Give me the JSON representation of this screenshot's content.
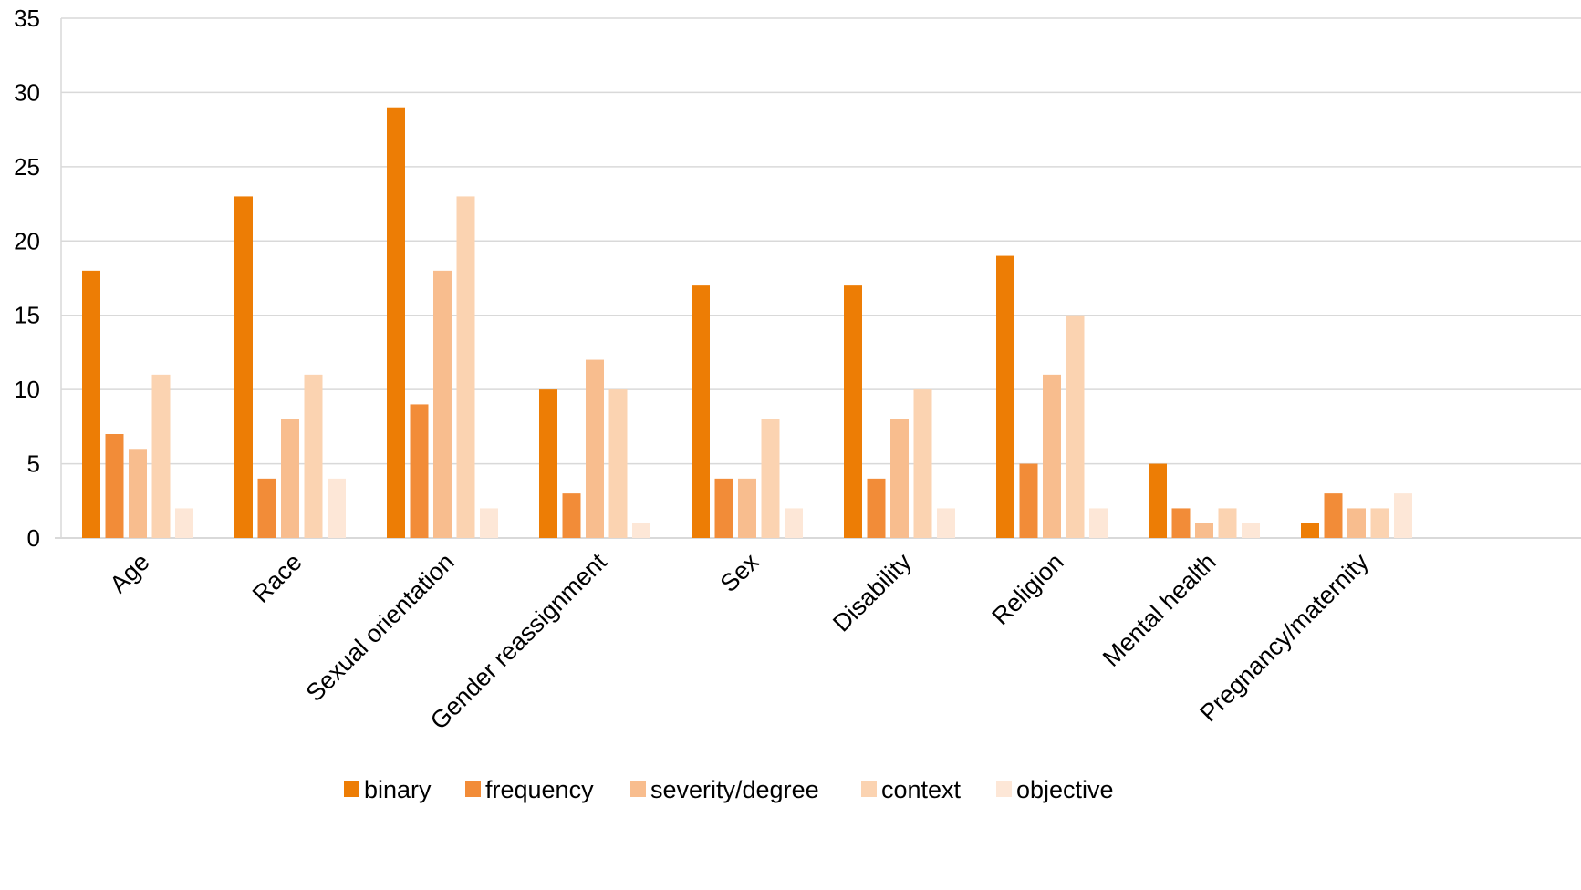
{
  "chart_data": {
    "type": "bar",
    "title": "",
    "xlabel": "",
    "ylabel": "",
    "ylim": [
      0,
      35
    ],
    "yticks": [
      0,
      5,
      10,
      15,
      20,
      25,
      30,
      35
    ],
    "grid": true,
    "legend_position": "bottom",
    "categories": [
      "Age",
      "Race",
      "Sexual orientation",
      "Gender reassignment",
      "Sex",
      "Disability",
      "Religion",
      "Mental health",
      "Pregnancy/maternity"
    ],
    "series": [
      {
        "name": "binary",
        "color": "#ED7D05",
        "values": [
          18,
          23,
          29,
          10,
          17,
          17,
          19,
          5,
          1
        ]
      },
      {
        "name": "frequency",
        "color": "#F28C38",
        "values": [
          7,
          4,
          9,
          3,
          4,
          4,
          5,
          2,
          3
        ]
      },
      {
        "name": "severity/degree",
        "color": "#F8BD8E",
        "values": [
          6,
          8,
          18,
          12,
          4,
          8,
          11,
          1,
          2
        ]
      },
      {
        "name": "context",
        "color": "#FBD3B1",
        "values": [
          11,
          11,
          23,
          10,
          8,
          10,
          15,
          2,
          2
        ]
      },
      {
        "name": "objective",
        "color": "#FDE7D7",
        "values": [
          2,
          4,
          2,
          1,
          2,
          2,
          2,
          1,
          3
        ]
      }
    ]
  }
}
